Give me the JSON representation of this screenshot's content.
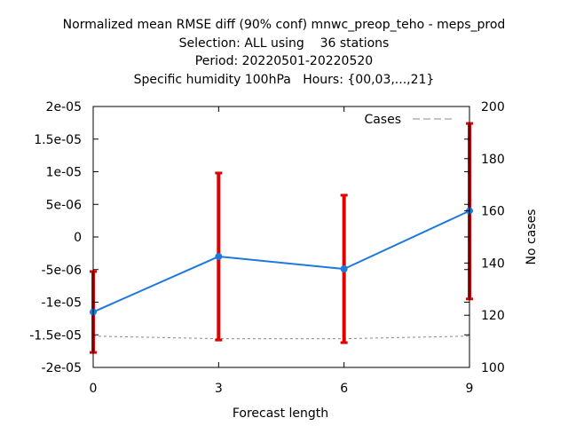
{
  "title_lines": [
    "Normalized mean RMSE diff (90% conf) mnwc_preop_teho - meps_prod",
    "Selection: ALL using    36 stations",
    "Period: 20220501-20220520",
    "Specific humidity 100hPa   Hours: {00,03,...,21}"
  ],
  "chart_data": {
    "type": "line",
    "title": "Normalized mean RMSE diff (90% conf) mnwc_preop_teho - meps_prod",
    "xlabel": "Forecast length",
    "ylabel": "",
    "y2label": "No cases",
    "x": [
      0,
      3,
      6,
      9
    ],
    "xlim": [
      0,
      9
    ],
    "ylim": [
      -2e-05,
      2e-05
    ],
    "y2lim": [
      100,
      200
    ],
    "x_ticks": [
      "0",
      "3",
      "6",
      "9"
    ],
    "y_ticks": [
      "-2e-05",
      "-1.5e-05",
      "-1e-05",
      "-5e-06",
      "0",
      "5e-06",
      "1e-05",
      "1.5e-05",
      "2e-05"
    ],
    "y2_ticks": [
      "100",
      "120",
      "140",
      "160",
      "180",
      "200"
    ],
    "grid": false,
    "legend_position": "top-right",
    "series": [
      {
        "kind": "mean_diff",
        "axis": "left",
        "values": [
          -1.15e-05,
          -3e-06,
          -4.9e-06,
          4e-06
        ],
        "ci_low": [
          -1.77e-05,
          -1.58e-05,
          -1.62e-05,
          -9.5e-06
        ],
        "ci_high": [
          -5.3e-06,
          9.8e-06,
          6.4e-06,
          1.74e-05
        ],
        "color": "#1f78dc",
        "errorbar_color": "#e00000"
      },
      {
        "name": "Cases",
        "axis": "right",
        "values": [
          112,
          111,
          111,
          112
        ],
        "color": "#888888",
        "style": "dashed"
      }
    ]
  }
}
